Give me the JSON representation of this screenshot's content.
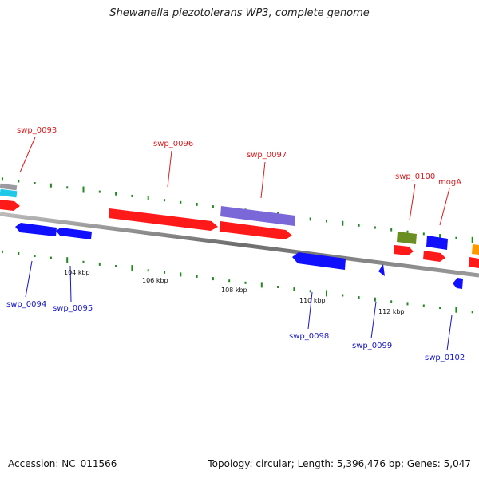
{
  "title": "Shewanella piezotolerans WP3, complete genome",
  "footer": {
    "accession": "Accession: NC_011566",
    "topology": "Topology: circular; Length: 5,396,476 bp; Genes: 5,047"
  },
  "scale_labels": [
    "104 kbp",
    "106 kbp",
    "108 kbp",
    "110 kbp",
    "112 kbp"
  ],
  "gene_labels_top": [
    "swp_0093",
    "swp_0096",
    "swp_0097",
    "swp_0100",
    "mogA"
  ],
  "gene_labels_bottom": [
    "swp_0094",
    "swp_0095",
    "swp_0098",
    "swp_0099",
    "swp_0102"
  ],
  "colors": {
    "forward_label": "#e0191b",
    "reverse_label": "#1515d0",
    "cds": "#ff1a1a",
    "reverse_cds": "#1010ff",
    "purple_feature": "#7b68d8",
    "green_feature": "#6b8e23",
    "cyan_feature": "#20c8e8",
    "orange_feature": "#ff9900",
    "gc_ticks": "#1f8a1f",
    "backbone": "#888888"
  }
}
